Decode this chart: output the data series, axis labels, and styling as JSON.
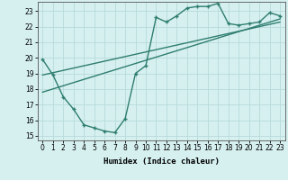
{
  "line1_x": [
    0,
    1,
    2,
    3,
    4,
    5,
    6,
    7,
    8,
    9,
    10,
    11,
    12,
    13,
    14,
    15,
    16,
    17,
    18,
    19,
    20,
    21,
    22,
    23
  ],
  "line1_y": [
    19.9,
    18.9,
    17.5,
    16.7,
    15.7,
    15.5,
    15.3,
    15.2,
    16.1,
    19.0,
    19.5,
    22.6,
    22.3,
    22.7,
    23.2,
    23.3,
    23.3,
    23.5,
    22.2,
    22.1,
    22.2,
    22.3,
    22.9,
    22.7
  ],
  "line2_x": [
    0,
    23
  ],
  "line2_y": [
    17.8,
    22.5
  ],
  "line3_x": [
    0,
    23
  ],
  "line3_y": [
    18.9,
    22.3
  ],
  "color": "#2e7d6e",
  "bg_color": "#d6f0f0",
  "grid_color": "#b8dada",
  "xlim": [
    -0.5,
    23.5
  ],
  "ylim": [
    14.7,
    23.6
  ],
  "yticks": [
    15,
    16,
    17,
    18,
    19,
    20,
    21,
    22,
    23
  ],
  "xticks": [
    0,
    1,
    2,
    3,
    4,
    5,
    6,
    7,
    8,
    9,
    10,
    11,
    12,
    13,
    14,
    15,
    16,
    17,
    18,
    19,
    20,
    21,
    22,
    23
  ],
  "xlabel": "Humidex (Indice chaleur)",
  "marker": "+",
  "markersize": 3.5,
  "linewidth": 1.0
}
